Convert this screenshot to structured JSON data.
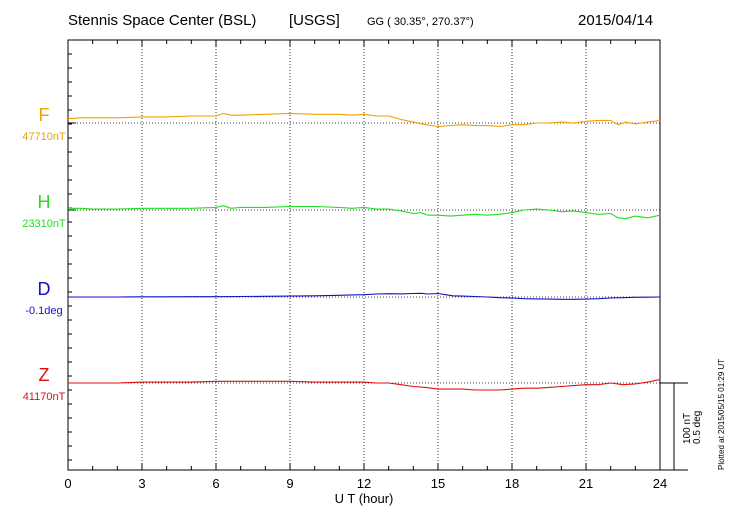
{
  "header": {
    "station": "Stennis Space Center (BSL)",
    "network": "[USGS]",
    "coords": "GG ( 30.35°, 270.37°)",
    "date": "2015/04/14"
  },
  "side_note": "Plotted at 2015/05/15 01:29 UT",
  "scale_note": {
    "line1": "100 nT",
    "line2": "0.5 deg"
  },
  "chart_data": {
    "type": "line",
    "xlabel": "U T (hour)",
    "xlim": [
      0,
      24
    ],
    "xticks": [
      0,
      3,
      6,
      9,
      12,
      15,
      18,
      21,
      24
    ],
    "grid": true,
    "series": [
      {
        "name": "F",
        "baseline_label": "47710nT",
        "baseline": 47710,
        "unit": "nT",
        "color": "#f0a000",
        "x": [
          0,
          0.5,
          1,
          2,
          3,
          4,
          5,
          6,
          6.3,
          6.6,
          7,
          8,
          9,
          10,
          11,
          11.5,
          12,
          12.5,
          13,
          13.5,
          14,
          14.5,
          15,
          15.5,
          16,
          16.5,
          17,
          17.5,
          18,
          18.5,
          19,
          19.5,
          20,
          20.5,
          21,
          21.5,
          22,
          22.3,
          22.6,
          23,
          23.5,
          24
        ],
        "values": [
          47715,
          47716,
          47716,
          47716,
          47717,
          47717,
          47718,
          47718,
          47721,
          47719,
          47719,
          47720,
          47721,
          47720,
          47720,
          47719,
          47720,
          47718,
          47718,
          47714,
          47711,
          47708,
          47706,
          47707,
          47708,
          47707,
          47707,
          47706,
          47708,
          47708,
          47710,
          47710,
          47711,
          47710,
          47712,
          47713,
          47713,
          47708,
          47711,
          47709,
          47711,
          47713
        ]
      },
      {
        "name": "H",
        "baseline_label": "23310nT",
        "baseline": 23310,
        "unit": "nT",
        "color": "#22dd22",
        "x": [
          0,
          0.5,
          1,
          2,
          3,
          4,
          5,
          6,
          6.3,
          6.6,
          7,
          8,
          9,
          10,
          11,
          11.5,
          12,
          12.5,
          13,
          13.5,
          14,
          14.3,
          14.6,
          15,
          15.5,
          16,
          16.5,
          17,
          17.5,
          18,
          18.5,
          19,
          19.5,
          20,
          20.5,
          21,
          21.5,
          22,
          22.3,
          22.6,
          23,
          23.5,
          24
        ],
        "values": [
          23312,
          23312,
          23311,
          23311,
          23312,
          23312,
          23312,
          23313,
          23315,
          23312,
          23313,
          23313,
          23314,
          23314,
          23313,
          23312,
          23313,
          23311,
          23311,
          23309,
          23306,
          23307,
          23304,
          23304,
          23303,
          23304,
          23305,
          23304,
          23305,
          23307,
          23310,
          23311,
          23310,
          23308,
          23309,
          23307,
          23305,
          23306,
          23301,
          23300,
          23303,
          23301,
          23304
        ]
      },
      {
        "name": "D",
        "baseline_label": "-0.1deg",
        "baseline": -0.1,
        "unit": "deg",
        "color": "#1111cc",
        "x": [
          0,
          1,
          2,
          3,
          4,
          5,
          6,
          7,
          8,
          9,
          10,
          10.5,
          11,
          11.5,
          12,
          12.5,
          13,
          13.5,
          14,
          14.3,
          14.6,
          15,
          15.3,
          15.6,
          16,
          16.5,
          17,
          17.5,
          18,
          18.5,
          19,
          19.5,
          20,
          20.5,
          21,
          21.5,
          22,
          22.5,
          23,
          23.5,
          24
        ],
        "values": [
          -0.1,
          -0.1,
          -0.1,
          -0.099,
          -0.099,
          -0.098,
          -0.098,
          -0.097,
          -0.096,
          -0.095,
          -0.093,
          -0.092,
          -0.09,
          -0.088,
          -0.087,
          -0.083,
          -0.081,
          -0.082,
          -0.08,
          -0.079,
          -0.083,
          -0.08,
          -0.087,
          -0.093,
          -0.095,
          -0.097,
          -0.1,
          -0.104,
          -0.106,
          -0.11,
          -0.111,
          -0.112,
          -0.113,
          -0.113,
          -0.112,
          -0.11,
          -0.106,
          -0.104,
          -0.102,
          -0.101,
          -0.1
        ]
      },
      {
        "name": "Z",
        "baseline_label": "41170nT",
        "baseline": 41170,
        "unit": "nT",
        "color": "#dd1111",
        "x": [
          0,
          1,
          2,
          3,
          4,
          5,
          6,
          7,
          8,
          9,
          10,
          11,
          12,
          12.5,
          13,
          13.5,
          14,
          14.5,
          15,
          15.5,
          16,
          16.5,
          17,
          17.5,
          18,
          18.5,
          19,
          19.5,
          20,
          20.5,
          21,
          21.5,
          22,
          22.5,
          23,
          23.5,
          24
        ],
        "values": [
          41170,
          41170,
          41170,
          41171,
          41171,
          41171,
          41172,
          41172,
          41172,
          41172,
          41171,
          41171,
          41171,
          41170,
          41170,
          41168,
          41166,
          41165,
          41163,
          41163,
          41163,
          41162,
          41162,
          41162,
          41163,
          41164,
          41164,
          41165,
          41166,
          41167,
          41168,
          41168,
          41170,
          41168,
          41169,
          41171,
          41174
        ]
      }
    ]
  }
}
